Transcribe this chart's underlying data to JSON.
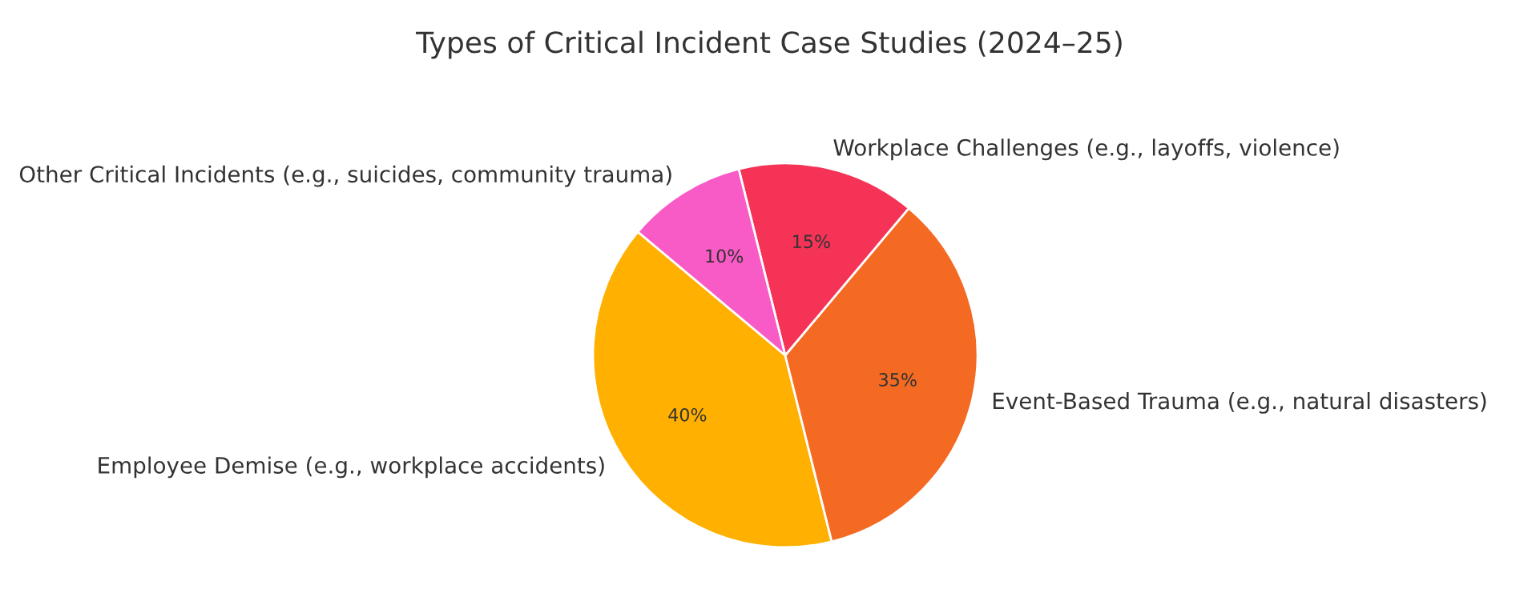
{
  "chart_data": {
    "type": "pie",
    "title": "Types of Critical Incident Case Studies (2024–25)",
    "categories": [
      "Employee Demise (e.g., workplace accidents)",
      "Event-Based Trauma (e.g., natural disasters)",
      "Workplace Challenges (e.g., layoffs, violence)",
      "Other Critical Incidents (e.g., suicides, community trauma)"
    ],
    "values": [
      40,
      35,
      15,
      10
    ],
    "colors": [
      "#ffb000",
      "#f46a22",
      "#f43357",
      "#f95bc6"
    ],
    "value_labels": [
      "40%",
      "35%",
      "15%",
      "10%"
    ]
  }
}
